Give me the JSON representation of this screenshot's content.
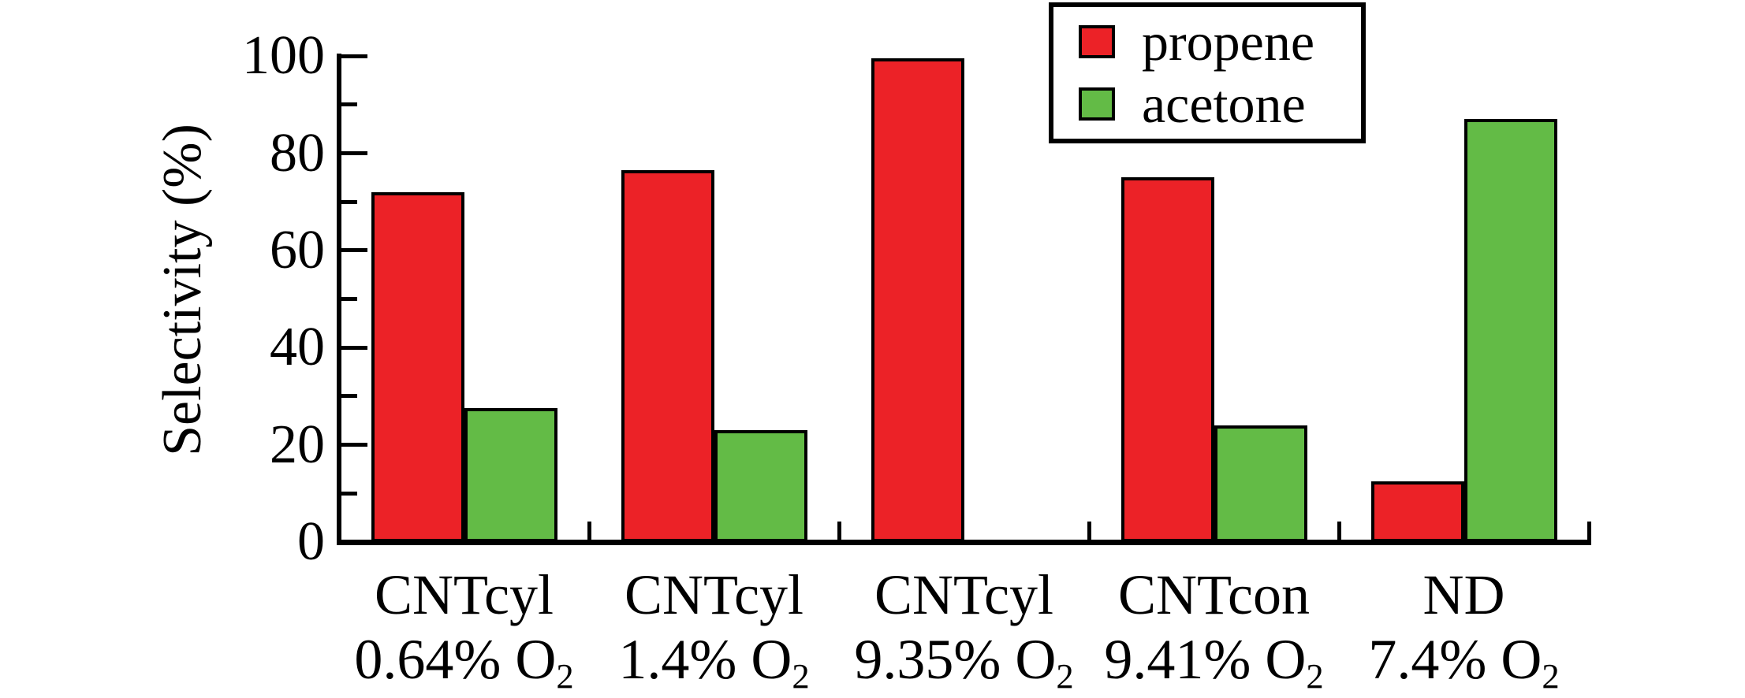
{
  "figure": {
    "background": "#ffffff",
    "axis_color": "#000000"
  },
  "legend": {
    "position": "top-right",
    "items": [
      {
        "label": "propene",
        "color": "#ec2227"
      },
      {
        "label": "acetone",
        "color": "#63bb46"
      }
    ]
  },
  "chart_data": {
    "type": "bar",
    "title": "",
    "xlabel": "",
    "ylabel": "Selectivity (%)",
    "ylim": [
      0,
      100
    ],
    "yticks_major": [
      0,
      20,
      40,
      60,
      80,
      100
    ],
    "yticks_minor": [
      10,
      30,
      50,
      70,
      90
    ],
    "grid": false,
    "legend_position": "top-right",
    "categories": [
      {
        "line1": "CNTcyl",
        "line2_pre": "0.64% O",
        "line2_sub": "2"
      },
      {
        "line1": "CNTcyl",
        "line2_pre": "1.4% O",
        "line2_sub": "2"
      },
      {
        "line1": "CNTcyl",
        "line2_pre": "9.35% O",
        "line2_sub": "2"
      },
      {
        "line1": "CNTcon",
        "line2_pre": "9.41% O",
        "line2_sub": "2"
      },
      {
        "line1": "ND",
        "line2_pre": "7.4% O",
        "line2_sub": "2"
      }
    ],
    "series": [
      {
        "name": "propene",
        "color": "#ec2227",
        "values": [
          72,
          76.5,
          99.5,
          75,
          12.5
        ]
      },
      {
        "name": "acetone",
        "color": "#63bb46",
        "values": [
          27.5,
          23,
          0,
          24,
          87
        ]
      }
    ]
  }
}
